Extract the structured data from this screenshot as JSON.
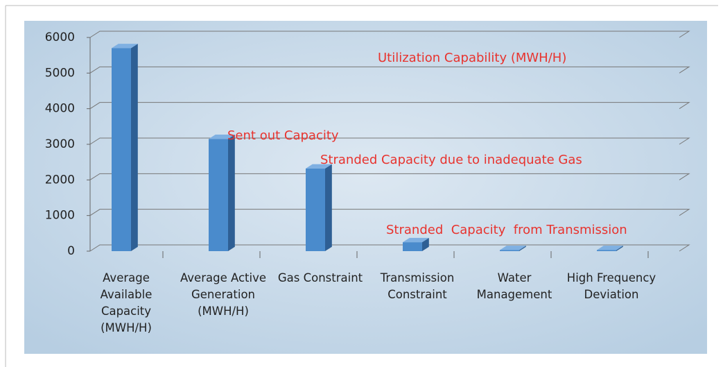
{
  "chart_data": {
    "type": "bar",
    "categories": [
      "Average Available Capacity (MWH/H)",
      "Average Active Generation (MWH/H)",
      "Gas Constraint",
      "Transmission Constraint",
      "Water Management",
      "High Frequency Deviation"
    ],
    "values": [
      5700,
      3150,
      2320,
      250,
      30,
      30
    ],
    "color": "#4a8bcc",
    "ylim": [
      0,
      6000
    ],
    "yticks": [
      0,
      1000,
      2000,
      3000,
      4000,
      5000,
      6000
    ],
    "grid": true,
    "annotations": [
      "Utilization Capability (MWH/H)",
      "Sent out Capacity",
      "Stranded Capacity due to inadequate Gas",
      "Stranded  Capacity  from Transmission"
    ],
    "annotation_color": "#e8332e"
  }
}
